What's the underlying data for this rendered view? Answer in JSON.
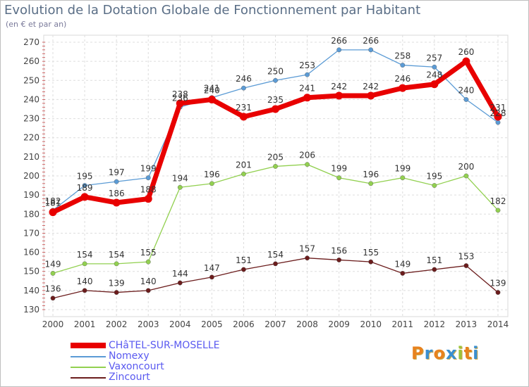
{
  "header": {
    "title": "Evolution de la Dotation Globale de Fonctionnement par Habitant",
    "subtitle": "(en € et par an)"
  },
  "logo": {
    "text": "Proxiti",
    "colors": [
      "#e8821e",
      "#3a8fd0",
      "#e8821e",
      "#3a8fd0",
      "#9bc43a",
      "#e8821e",
      "#3a8fd0"
    ]
  },
  "chart_data": {
    "type": "line",
    "title": "Evolution de la Dotation Globale de Fonctionnement par Habitant",
    "subtitle": "(en € et par an)",
    "x": [
      "2000",
      "2001",
      "2002",
      "2003",
      "2004",
      "2005",
      "2006",
      "2007",
      "2008",
      "2009",
      "2010",
      "2011",
      "2012",
      "2013",
      "2014"
    ],
    "ylim": [
      130,
      270
    ],
    "yticks": [
      130,
      140,
      150,
      160,
      170,
      180,
      190,
      200,
      210,
      220,
      230,
      240,
      250,
      260,
      270
    ],
    "grid": true,
    "legend": "bottom-left",
    "series": [
      {
        "name": "CHâTEL-SUR-MOSELLE",
        "color": "#e80000",
        "values": [
          181,
          189,
          186,
          188,
          238,
          240,
          231,
          235,
          241,
          242,
          242,
          246,
          248,
          260,
          231
        ],
        "emphasis": true
      },
      {
        "name": "Nomexy",
        "color": "#5b9bd5",
        "values": [
          182,
          195,
          197,
          199,
          236,
          241,
          246,
          250,
          253,
          266,
          266,
          258,
          257,
          240,
          228
        ]
      },
      {
        "name": "Vaxoncourt",
        "color": "#92d050",
        "values": [
          149,
          154,
          154,
          155,
          194,
          196,
          201,
          205,
          206,
          199,
          196,
          199,
          195,
          200,
          182
        ]
      },
      {
        "name": "Zincourt",
        "color": "#6b1c1c",
        "values": [
          136,
          140,
          139,
          140,
          144,
          147,
          151,
          154,
          157,
          156,
          155,
          149,
          151,
          153,
          139
        ]
      }
    ]
  }
}
